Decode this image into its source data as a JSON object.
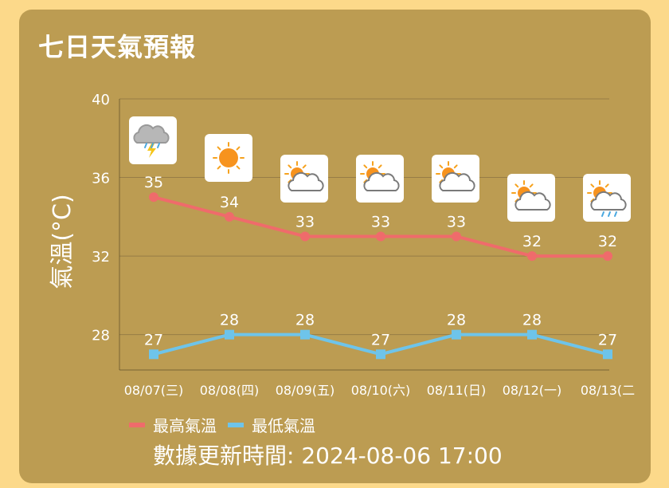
{
  "title": "七日天氣預報",
  "chart_data": {
    "type": "line",
    "categories": [
      "08/07(三)",
      "08/08(四)",
      "08/09(五)",
      "08/10(六)",
      "08/11(日)",
      "08/12(一)",
      "08/13(二"
    ],
    "series": [
      {
        "name": "最高氣溫",
        "values": [
          35,
          34,
          33,
          33,
          33,
          32,
          32
        ],
        "color": "#ef6b6b",
        "marker": "circle"
      },
      {
        "name": "最低氣溫",
        "values": [
          27,
          28,
          28,
          27,
          28,
          28,
          27
        ],
        "color": "#6ec4ea",
        "marker": "square"
      }
    ],
    "ylabel": "氣溫(°C)",
    "ylim": [
      26.2,
      40
    ],
    "yticks": [
      28,
      32,
      36,
      40
    ],
    "grid": true,
    "legend": "bottom-left",
    "icons": [
      "thunder-rain-icon",
      "sunny-icon",
      "partly-cloudy-icon",
      "partly-cloudy-icon",
      "partly-cloudy-icon",
      "partly-cloudy-icon",
      "partly-cloudy-rain-icon"
    ]
  },
  "legend_items": [
    "最高氣溫",
    "最低氣溫"
  ],
  "updated_text": "數據更新時間: 2024-08-06 17:00",
  "colors": {
    "background": "#fcd98a",
    "card": "#bc9c52",
    "high": "#ef6b6b",
    "low": "#6ec4ea"
  }
}
